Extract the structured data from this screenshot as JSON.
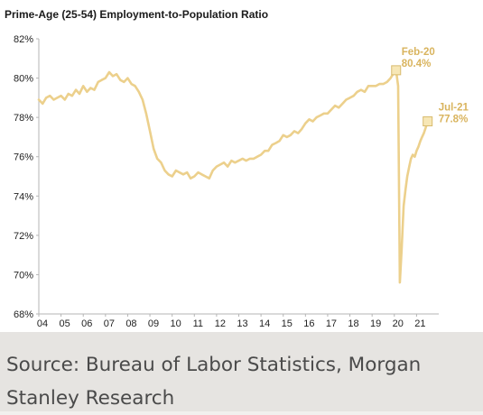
{
  "chart_data": {
    "type": "line",
    "title": "Prime-Age (25-54) Employment-to-Population Ratio",
    "xlabel": "",
    "ylabel": "",
    "x_tick_labels": [
      "04",
      "05",
      "06",
      "07",
      "08",
      "09",
      "10",
      "11",
      "12",
      "13",
      "14",
      "15",
      "16",
      "17",
      "18",
      "19",
      "20",
      "21"
    ],
    "y_tick_labels": [
      "68%",
      "70%",
      "72%",
      "74%",
      "76%",
      "78%",
      "80%",
      "82%"
    ],
    "ylim": [
      68,
      82
    ],
    "xlim": [
      2004.0,
      2022.0
    ],
    "grid": false,
    "legend": "none",
    "line_color": "#ecd08c",
    "series": [
      {
        "points": [
          [
            2004.0,
            78.9
          ],
          [
            2004.17,
            78.7
          ],
          [
            2004.33,
            79.0
          ],
          [
            2004.5,
            79.1
          ],
          [
            2004.67,
            78.9
          ],
          [
            2004.83,
            79.0
          ],
          [
            2005.0,
            79.1
          ],
          [
            2005.17,
            78.9
          ],
          [
            2005.33,
            79.2
          ],
          [
            2005.5,
            79.1
          ],
          [
            2005.67,
            79.4
          ],
          [
            2005.83,
            79.2
          ],
          [
            2006.0,
            79.6
          ],
          [
            2006.17,
            79.3
          ],
          [
            2006.33,
            79.5
          ],
          [
            2006.5,
            79.4
          ],
          [
            2006.67,
            79.8
          ],
          [
            2006.83,
            79.9
          ],
          [
            2007.0,
            80.0
          ],
          [
            2007.17,
            80.3
          ],
          [
            2007.33,
            80.1
          ],
          [
            2007.5,
            80.2
          ],
          [
            2007.67,
            79.9
          ],
          [
            2007.83,
            79.8
          ],
          [
            2008.0,
            80.0
          ],
          [
            2008.17,
            79.7
          ],
          [
            2008.33,
            79.6
          ],
          [
            2008.5,
            79.3
          ],
          [
            2008.67,
            78.9
          ],
          [
            2008.83,
            78.2
          ],
          [
            2009.0,
            77.3
          ],
          [
            2009.17,
            76.4
          ],
          [
            2009.33,
            75.9
          ],
          [
            2009.5,
            75.7
          ],
          [
            2009.67,
            75.3
          ],
          [
            2009.83,
            75.1
          ],
          [
            2010.0,
            75.0
          ],
          [
            2010.17,
            75.3
          ],
          [
            2010.33,
            75.2
          ],
          [
            2010.5,
            75.1
          ],
          [
            2010.67,
            75.2
          ],
          [
            2010.83,
            74.9
          ],
          [
            2011.0,
            75.0
          ],
          [
            2011.17,
            75.2
          ],
          [
            2011.33,
            75.1
          ],
          [
            2011.5,
            75.0
          ],
          [
            2011.67,
            74.9
          ],
          [
            2011.83,
            75.3
          ],
          [
            2012.0,
            75.5
          ],
          [
            2012.17,
            75.6
          ],
          [
            2012.33,
            75.7
          ],
          [
            2012.5,
            75.5
          ],
          [
            2012.67,
            75.8
          ],
          [
            2012.83,
            75.7
          ],
          [
            2013.0,
            75.8
          ],
          [
            2013.17,
            75.9
          ],
          [
            2013.33,
            75.8
          ],
          [
            2013.5,
            75.9
          ],
          [
            2013.67,
            75.9
          ],
          [
            2013.83,
            76.0
          ],
          [
            2014.0,
            76.1
          ],
          [
            2014.17,
            76.3
          ],
          [
            2014.33,
            76.3
          ],
          [
            2014.5,
            76.6
          ],
          [
            2014.67,
            76.7
          ],
          [
            2014.83,
            76.8
          ],
          [
            2015.0,
            77.1
          ],
          [
            2015.17,
            77.0
          ],
          [
            2015.33,
            77.1
          ],
          [
            2015.5,
            77.3
          ],
          [
            2015.67,
            77.2
          ],
          [
            2015.83,
            77.4
          ],
          [
            2016.0,
            77.7
          ],
          [
            2016.17,
            77.9
          ],
          [
            2016.33,
            77.8
          ],
          [
            2016.5,
            78.0
          ],
          [
            2016.67,
            78.1
          ],
          [
            2016.83,
            78.2
          ],
          [
            2017.0,
            78.2
          ],
          [
            2017.17,
            78.4
          ],
          [
            2017.33,
            78.6
          ],
          [
            2017.5,
            78.5
          ],
          [
            2017.67,
            78.7
          ],
          [
            2017.83,
            78.9
          ],
          [
            2018.0,
            79.0
          ],
          [
            2018.17,
            79.1
          ],
          [
            2018.33,
            79.3
          ],
          [
            2018.5,
            79.4
          ],
          [
            2018.67,
            79.3
          ],
          [
            2018.83,
            79.6
          ],
          [
            2019.0,
            79.6
          ],
          [
            2019.17,
            79.6
          ],
          [
            2019.33,
            79.7
          ],
          [
            2019.5,
            79.7
          ],
          [
            2019.67,
            79.8
          ],
          [
            2019.83,
            80.0
          ],
          [
            2020.0,
            80.3
          ],
          [
            2020.08,
            80.4
          ],
          [
            2020.17,
            79.6
          ],
          [
            2020.25,
            69.6
          ],
          [
            2020.33,
            71.3
          ],
          [
            2020.42,
            73.5
          ],
          [
            2020.5,
            74.3
          ],
          [
            2020.58,
            75.0
          ],
          [
            2020.67,
            75.5
          ],
          [
            2020.75,
            75.9
          ],
          [
            2020.83,
            76.1
          ],
          [
            2020.92,
            76.0
          ],
          [
            2021.0,
            76.3
          ],
          [
            2021.08,
            76.5
          ],
          [
            2021.17,
            76.8
          ],
          [
            2021.25,
            77.0
          ],
          [
            2021.33,
            77.2
          ],
          [
            2021.42,
            77.5
          ],
          [
            2021.5,
            77.8
          ]
        ]
      }
    ],
    "annotations": [
      {
        "label": "Feb-20",
        "value_label": "80.4%",
        "x": 2020.08,
        "y": 80.4
      },
      {
        "label": "Jul-21",
        "value_label": "77.8%",
        "x": 2021.5,
        "y": 77.8
      }
    ]
  },
  "caption": "Source: Bureau of Labor Statistics, Morgan Stanley Research"
}
